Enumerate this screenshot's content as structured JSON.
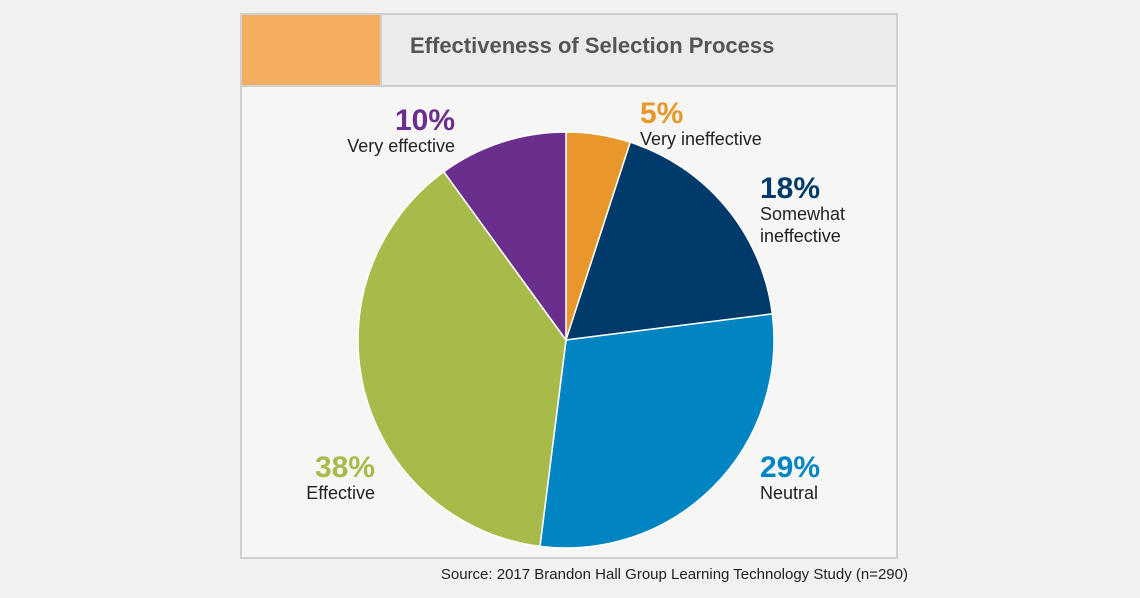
{
  "chart_data": {
    "type": "pie",
    "title": "Effectiveness of Selection Process",
    "slices": [
      {
        "label": "Very ineffective",
        "value": 5,
        "value_label": "5%",
        "color": "#e8982a"
      },
      {
        "label": "Somewhat ineffective",
        "value": 18,
        "value_label": "18%",
        "color": "#003a6a"
      },
      {
        "label": "Neutral",
        "value": 29,
        "value_label": "29%",
        "color": "#0085c2"
      },
      {
        "label": "Effective",
        "value": 38,
        "value_label": "38%",
        "color": "#a8ba4a"
      },
      {
        "label": "Very effective",
        "value": 10,
        "value_label": "10%",
        "color": "#6a2f8c"
      }
    ],
    "legend": "none",
    "source": "Source: 2017 Brandon Hall Group Learning Technology Study (n=290)"
  },
  "colors": {
    "header_accent": "#f5ae5f"
  }
}
